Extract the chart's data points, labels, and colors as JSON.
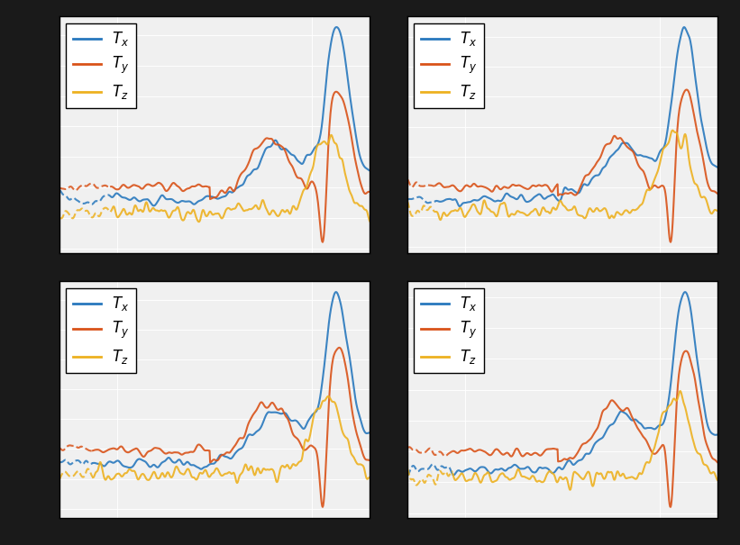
{
  "colors": {
    "Tx": "#2878BD",
    "Ty": "#D95319",
    "Tz": "#EDB120"
  },
  "legend_labels": [
    "$T_x$",
    "$T_y$",
    "$T_z$"
  ],
  "background_color": "#f5f5f5",
  "grid_color": "#cccccc",
  "fig_bg": "#1a1a1a",
  "n_points": 500,
  "freq_range": [
    1,
    200
  ],
  "noise_seed": 42
}
